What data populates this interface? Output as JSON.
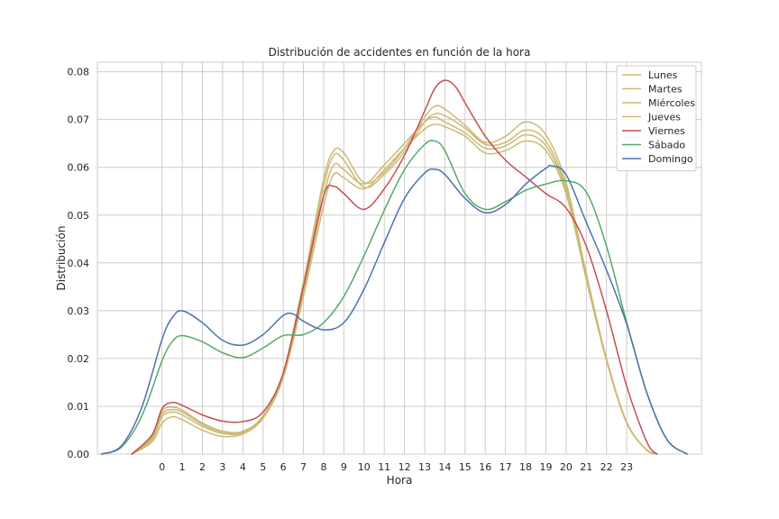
{
  "chart_data": {
    "type": "line",
    "title": "Distribución de accidentes en función de la hora",
    "xlabel": "Hora",
    "ylabel": "Distribución",
    "xlim": [
      -3.2,
      26.7
    ],
    "ylim": [
      0,
      0.082
    ],
    "x_ticks": [
      0,
      1,
      2,
      3,
      4,
      5,
      6,
      7,
      8,
      9,
      10,
      11,
      12,
      13,
      14,
      15,
      16,
      17,
      18,
      19,
      20,
      21,
      22,
      23
    ],
    "y_ticks": [
      0.0,
      0.01,
      0.02,
      0.03,
      0.04,
      0.05,
      0.06,
      0.07,
      0.08
    ],
    "y_tick_labels": [
      "0.00",
      "0.01",
      "0.02",
      "0.03",
      "0.04",
      "0.05",
      "0.06",
      "0.07",
      "0.08"
    ],
    "grid": true,
    "legend_position": "top-right",
    "colors": {
      "weekday": "#ccb974",
      "viernes": "#c44e52",
      "sabado": "#55a868",
      "domingo": "#4c72b0",
      "grid": "#cccccc",
      "axis": "#cccccc"
    },
    "series": [
      {
        "name": "Lunes",
        "color": "#ccb974",
        "x": [
          -1.5,
          -0.5,
          0,
          0.5,
          1,
          2,
          3,
          4,
          5,
          6,
          7,
          8,
          8.5,
          9,
          10,
          11,
          12,
          13,
          13.5,
          14,
          15,
          16,
          17,
          18,
          19,
          20,
          21,
          22,
          23,
          24,
          24.5
        ],
        "y": [
          0.0,
          0.0025,
          0.0065,
          0.0078,
          0.0072,
          0.005,
          0.0037,
          0.0042,
          0.0075,
          0.016,
          0.033,
          0.052,
          0.0585,
          0.0578,
          0.0555,
          0.0595,
          0.064,
          0.068,
          0.069,
          0.0685,
          0.0665,
          0.063,
          0.0635,
          0.0655,
          0.0635,
          0.0545,
          0.0365,
          0.0195,
          0.0065,
          0.0008,
          0.0
        ]
      },
      {
        "name": "Martes",
        "color": "#ccb974",
        "x": [
          -1.5,
          -0.5,
          0,
          0.5,
          1,
          2,
          3,
          4,
          5,
          6,
          7,
          8,
          8.5,
          9,
          10,
          11,
          12,
          13,
          13.5,
          14,
          15,
          16,
          17,
          18,
          19,
          20,
          21,
          22,
          23,
          24,
          24.5
        ],
        "y": [
          0.0,
          0.003,
          0.0078,
          0.0088,
          0.0082,
          0.0058,
          0.0043,
          0.0045,
          0.0078,
          0.0165,
          0.034,
          0.054,
          0.0605,
          0.0595,
          0.0565,
          0.0605,
          0.065,
          0.0695,
          0.0705,
          0.0695,
          0.0672,
          0.064,
          0.0645,
          0.0668,
          0.0645,
          0.0552,
          0.037,
          0.0198,
          0.0066,
          0.0008,
          0.0
        ]
      },
      {
        "name": "Miércoles",
        "color": "#ccb974",
        "x": [
          -1.5,
          -0.5,
          0,
          0.5,
          1,
          2,
          3,
          4,
          5,
          6,
          7,
          8,
          8.5,
          9,
          10,
          11,
          12,
          13,
          13.5,
          14,
          15,
          16,
          17,
          18,
          19,
          20,
          21,
          22,
          23,
          24,
          24.5
        ],
        "y": [
          0.0,
          0.0033,
          0.0084,
          0.0093,
          0.0088,
          0.0062,
          0.0046,
          0.0047,
          0.008,
          0.0168,
          0.035,
          0.056,
          0.0625,
          0.0615,
          0.0558,
          0.0585,
          0.0632,
          0.0695,
          0.0712,
          0.0708,
          0.0682,
          0.0648,
          0.0652,
          0.0678,
          0.0655,
          0.0558,
          0.0372,
          0.0198,
          0.0066,
          0.0008,
          0.0
        ]
      },
      {
        "name": "Jueves",
        "color": "#ccb974",
        "x": [
          -1.5,
          -0.5,
          0,
          0.5,
          1,
          2,
          3,
          4,
          5,
          6,
          7,
          8,
          8.5,
          9,
          10,
          11,
          12,
          13,
          13.5,
          14,
          15,
          16,
          17,
          18,
          19,
          20,
          21,
          22,
          23,
          24,
          24.5
        ],
        "y": [
          0.0,
          0.0036,
          0.009,
          0.0098,
          0.0092,
          0.0065,
          0.0048,
          0.0048,
          0.008,
          0.017,
          0.036,
          0.0575,
          0.0635,
          0.063,
          0.0568,
          0.059,
          0.064,
          0.0705,
          0.0728,
          0.0722,
          0.0688,
          0.0652,
          0.0665,
          0.0695,
          0.0668,
          0.0568,
          0.0378,
          0.02,
          0.0067,
          0.0008,
          0.0
        ]
      },
      {
        "name": "Viernes",
        "color": "#c44e52",
        "x": [
          -1.5,
          -0.5,
          0,
          0.5,
          1,
          2,
          3,
          4,
          5,
          6,
          7,
          8,
          8.5,
          9,
          10,
          11,
          12,
          13,
          13.5,
          14,
          14.5,
          15,
          16,
          17,
          18,
          19,
          20,
          21,
          22,
          23,
          24,
          24.5
        ],
        "y": [
          0.0,
          0.004,
          0.0095,
          0.0108,
          0.0102,
          0.0082,
          0.0069,
          0.0068,
          0.0088,
          0.017,
          0.035,
          0.054,
          0.056,
          0.0545,
          0.0512,
          0.0555,
          0.0625,
          0.0718,
          0.0765,
          0.0782,
          0.077,
          0.0735,
          0.0665,
          0.0615,
          0.058,
          0.0545,
          0.0515,
          0.0435,
          0.03,
          0.0142,
          0.0025,
          0.0
        ]
      },
      {
        "name": "Sábado",
        "color": "#55a868",
        "x": [
          -3,
          -2,
          -1,
          0,
          0.5,
          1,
          2,
          3,
          4,
          5,
          6,
          7,
          8,
          9,
          10,
          11,
          12,
          13,
          13.5,
          14,
          15,
          16,
          17,
          18,
          19,
          20,
          21,
          22,
          23,
          24,
          25,
          26
        ],
        "y": [
          0.0,
          0.0015,
          0.008,
          0.0195,
          0.0235,
          0.0248,
          0.0235,
          0.0212,
          0.0202,
          0.0222,
          0.0248,
          0.025,
          0.0275,
          0.033,
          0.0415,
          0.051,
          0.0595,
          0.0648,
          0.0655,
          0.0635,
          0.0545,
          0.0512,
          0.0528,
          0.0552,
          0.0565,
          0.0572,
          0.0548,
          0.0435,
          0.0275,
          0.0128,
          0.003,
          0.0
        ]
      },
      {
        "name": "Domingo",
        "color": "#4c72b0",
        "x": [
          -3,
          -2,
          -1,
          0,
          0.5,
          1,
          2,
          3,
          4,
          5,
          6,
          6.5,
          7,
          8,
          9,
          10,
          11,
          12,
          13,
          13.5,
          14,
          15,
          16,
          17,
          18,
          19,
          19.3,
          20,
          21,
          22,
          23,
          24,
          25,
          26
        ],
        "y": [
          0.0,
          0.0018,
          0.0098,
          0.024,
          0.0285,
          0.03,
          0.0275,
          0.0238,
          0.0228,
          0.025,
          0.029,
          0.0293,
          0.0278,
          0.026,
          0.0275,
          0.0345,
          0.0442,
          0.0535,
          0.0588,
          0.0596,
          0.0585,
          0.0535,
          0.0505,
          0.0522,
          0.0565,
          0.0598,
          0.0603,
          0.0585,
          0.0485,
          0.0385,
          0.0272,
          0.0128,
          0.003,
          0.0
        ]
      }
    ]
  }
}
